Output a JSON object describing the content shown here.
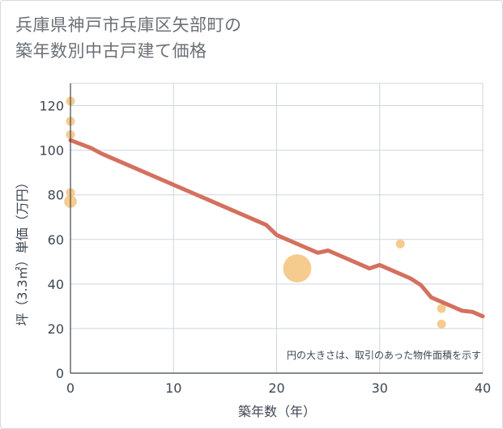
{
  "title": {
    "line1": "兵庫県神戸市兵庫区矢部町の",
    "line2": "築年数別中古戸建て価格"
  },
  "chart_data": {
    "type": "scatter",
    "title": "兵庫県神戸市兵庫区矢部町の築年数別中古戸建て価格",
    "xlabel": "築年数（年）",
    "ylabel": "坪（3.3㎡）単価（万円）",
    "xlim": [
      0,
      40
    ],
    "ylim": [
      0,
      130
    ],
    "xticks": [
      0,
      10,
      20,
      30,
      40
    ],
    "yticks": [
      0,
      20,
      40,
      60,
      80,
      100,
      120
    ],
    "grid": true,
    "note": "円の大きさは、取引のあった物件面積を示す",
    "colors": {
      "points": "#f5c27a",
      "trend": "#d4705e",
      "grid": "#cdd6e0"
    },
    "points": [
      {
        "x": 0,
        "y": 122,
        "size": 1
      },
      {
        "x": 0,
        "y": 113,
        "size": 1
      },
      {
        "x": 0,
        "y": 107,
        "size": 1
      },
      {
        "x": 0,
        "y": 81,
        "size": 1
      },
      {
        "x": 0,
        "y": 77,
        "size": 2
      },
      {
        "x": 22,
        "y": 47,
        "size": 10
      },
      {
        "x": 32,
        "y": 58,
        "size": 1
      },
      {
        "x": 36,
        "y": 29,
        "size": 1
      },
      {
        "x": 36,
        "y": 22,
        "size": 1
      }
    ],
    "trend": [
      {
        "x": 0,
        "y": 104.5
      },
      {
        "x": 2,
        "y": 101
      },
      {
        "x": 3,
        "y": 98.5
      },
      {
        "x": 19,
        "y": 66.5
      },
      {
        "x": 20,
        "y": 62
      },
      {
        "x": 24,
        "y": 54
      },
      {
        "x": 25,
        "y": 55
      },
      {
        "x": 29,
        "y": 47
      },
      {
        "x": 30,
        "y": 48.5
      },
      {
        "x": 33,
        "y": 42.5
      },
      {
        "x": 34,
        "y": 39.5
      },
      {
        "x": 35,
        "y": 34
      },
      {
        "x": 38,
        "y": 28
      },
      {
        "x": 39,
        "y": 27.5
      },
      {
        "x": 40,
        "y": 25.5
      }
    ]
  }
}
